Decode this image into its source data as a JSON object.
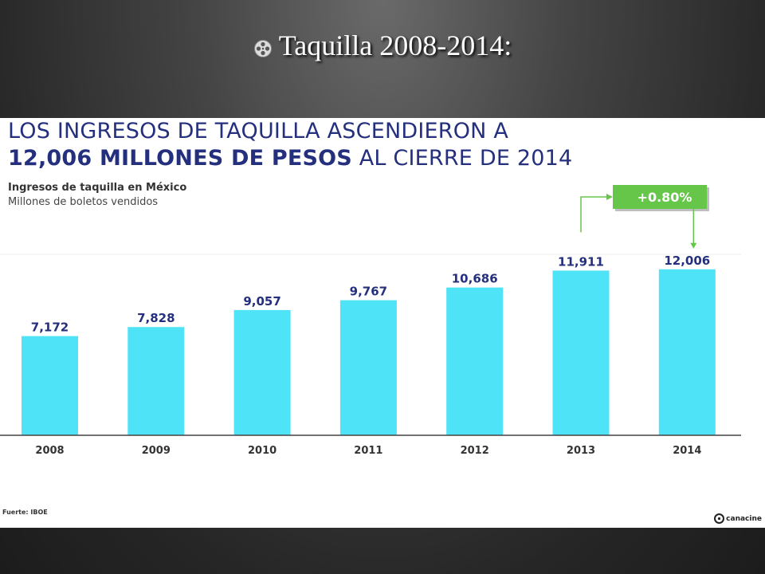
{
  "slide": {
    "title": "Taquilla 2008-2014:"
  },
  "panel": {
    "headline_line1": "LOS INGRESOS DE TAQUILLA ASCENDIERON A",
    "headline_line2_bold": "12,006 MILLONES DE PESOS",
    "headline_line2_rest": " AL CIERRE DE 2014",
    "source": "Fuerte: IBOE",
    "logo_text": "canacine"
  },
  "chart_data": {
    "type": "bar",
    "title": "Ingresos de taquilla en México",
    "subtitle": "Millones de boletos vendidos",
    "categories": [
      "2008",
      "2009",
      "2010",
      "2011",
      "2012",
      "2013",
      "2014"
    ],
    "values": [
      7172,
      7828,
      9057,
      9767,
      10686,
      11911,
      12006
    ],
    "value_labels": [
      "7,172",
      "7,828",
      "9,057",
      "9,767",
      "10,686",
      "11,911",
      "12,006"
    ],
    "annotation": "+0.80%",
    "bar_color": "#4ee3f7",
    "label_color": "#24307d",
    "annotation_color": "#66c64a",
    "grid": false
  }
}
